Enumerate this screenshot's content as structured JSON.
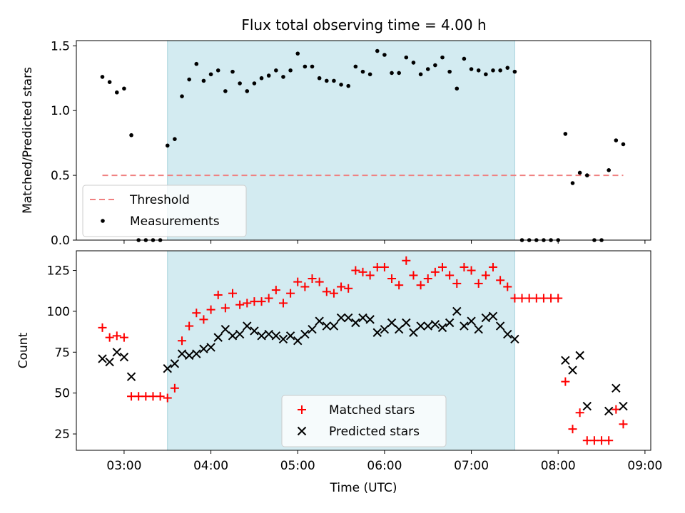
{
  "chart_data": {
    "title": "Flux total observing time = 4.00 h",
    "x_label": "Time (UTC)",
    "x_ticks": [
      "03:00",
      "04:00",
      "05:00",
      "06:00",
      "07:00",
      "08:00",
      "09:00"
    ],
    "x_range": [
      "02:27",
      "09:04"
    ],
    "observing_window": [
      "03:30",
      "07:30"
    ],
    "window_color": "#d3ebf1",
    "panels": [
      {
        "type": "scatter",
        "y_label": "Matched/Predicted stars",
        "y_range": [
          0,
          1.54
        ],
        "y_ticks": [
          "0.0",
          "0.5",
          "1.0",
          "1.5"
        ],
        "legend_position": "lower-left",
        "threshold": {
          "name": "Threshold",
          "value": 0.5,
          "x_range": [
            "02:45",
            "08:45"
          ],
          "color": "#f08080"
        },
        "series": [
          {
            "name": "Measurements",
            "marker": "dot",
            "color": "#000000",
            "points": [
              [
                "02:45",
                1.26
              ],
              [
                "02:50",
                1.22
              ],
              [
                "02:55",
                1.14
              ],
              [
                "03:00",
                1.17
              ],
              [
                "03:05",
                0.81
              ],
              [
                "03:10",
                0.0
              ],
              [
                "03:15",
                0.0
              ],
              [
                "03:20",
                0.0
              ],
              [
                "03:25",
                0.0
              ],
              [
                "03:30",
                0.73
              ],
              [
                "03:35",
                0.78
              ],
              [
                "03:40",
                1.11
              ],
              [
                "03:45",
                1.24
              ],
              [
                "03:50",
                1.36
              ],
              [
                "03:55",
                1.23
              ],
              [
                "04:00",
                1.28
              ],
              [
                "04:05",
                1.31
              ],
              [
                "04:10",
                1.15
              ],
              [
                "04:15",
                1.3
              ],
              [
                "04:20",
                1.21
              ],
              [
                "04:25",
                1.15
              ],
              [
                "04:30",
                1.21
              ],
              [
                "04:35",
                1.25
              ],
              [
                "04:40",
                1.27
              ],
              [
                "04:45",
                1.31
              ],
              [
                "04:50",
                1.26
              ],
              [
                "04:55",
                1.31
              ],
              [
                "05:00",
                1.44
              ],
              [
                "05:05",
                1.34
              ],
              [
                "05:10",
                1.34
              ],
              [
                "05:15",
                1.25
              ],
              [
                "05:20",
                1.23
              ],
              [
                "05:25",
                1.23
              ],
              [
                "05:30",
                1.2
              ],
              [
                "05:35",
                1.19
              ],
              [
                "05:40",
                1.34
              ],
              [
                "05:45",
                1.3
              ],
              [
                "05:50",
                1.28
              ],
              [
                "05:55",
                1.46
              ],
              [
                "06:00",
                1.43
              ],
              [
                "06:05",
                1.29
              ],
              [
                "06:10",
                1.29
              ],
              [
                "06:15",
                1.41
              ],
              [
                "06:20",
                1.37
              ],
              [
                "06:25",
                1.28
              ],
              [
                "06:30",
                1.32
              ],
              [
                "06:35",
                1.35
              ],
              [
                "06:40",
                1.41
              ],
              [
                "06:45",
                1.3
              ],
              [
                "06:50",
                1.17
              ],
              [
                "06:55",
                1.4
              ],
              [
                "07:00",
                1.32
              ],
              [
                "07:05",
                1.31
              ],
              [
                "07:10",
                1.28
              ],
              [
                "07:15",
                1.31
              ],
              [
                "07:20",
                1.31
              ],
              [
                "07:25",
                1.33
              ],
              [
                "07:30",
                1.3
              ],
              [
                "07:35",
                0.0
              ],
              [
                "07:40",
                0.0
              ],
              [
                "07:45",
                0.0
              ],
              [
                "07:50",
                0.0
              ],
              [
                "07:55",
                0.0
              ],
              [
                "08:00",
                0.0
              ],
              [
                "08:05",
                0.82
              ],
              [
                "08:10",
                0.44
              ],
              [
                "08:15",
                0.52
              ],
              [
                "08:20",
                0.5
              ],
              [
                "08:25",
                0.0
              ],
              [
                "08:30",
                0.0
              ],
              [
                "08:35",
                0.54
              ],
              [
                "08:40",
                0.77
              ],
              [
                "08:45",
                0.74
              ]
            ]
          }
        ]
      },
      {
        "type": "scatter",
        "y_label": "Count",
        "y_range": [
          15,
          137
        ],
        "y_ticks": [
          "25",
          "50",
          "75",
          "100",
          "125"
        ],
        "legend_position": "lower-center",
        "series": [
          {
            "name": "Matched stars",
            "marker": "plus",
            "color": "#ff0000",
            "points": [
              [
                "02:45",
                90
              ],
              [
                "02:50",
                84
              ],
              [
                "02:55",
                85
              ],
              [
                "03:00",
                84
              ],
              [
                "03:05",
                48
              ],
              [
                "03:10",
                48
              ],
              [
                "03:15",
                48
              ],
              [
                "03:20",
                48
              ],
              [
                "03:25",
                48
              ],
              [
                "03:30",
                47
              ],
              [
                "03:35",
                53
              ],
              [
                "03:40",
                82
              ],
              [
                "03:45",
                91
              ],
              [
                "03:50",
                99
              ],
              [
                "03:55",
                95
              ],
              [
                "04:00",
                101
              ],
              [
                "04:05",
                110
              ],
              [
                "04:10",
                102
              ],
              [
                "04:15",
                111
              ],
              [
                "04:20",
                104
              ],
              [
                "04:25",
                105
              ],
              [
                "04:30",
                106
              ],
              [
                "04:35",
                106
              ],
              [
                "04:40",
                108
              ],
              [
                "04:45",
                113
              ],
              [
                "04:50",
                105
              ],
              [
                "04:55",
                111
              ],
              [
                "05:00",
                118
              ],
              [
                "05:05",
                115
              ],
              [
                "05:10",
                120
              ],
              [
                "05:15",
                118
              ],
              [
                "05:20",
                112
              ],
              [
                "05:25",
                111
              ],
              [
                "05:30",
                115
              ],
              [
                "05:35",
                114
              ],
              [
                "05:40",
                125
              ],
              [
                "05:45",
                124
              ],
              [
                "05:50",
                122
              ],
              [
                "05:55",
                127
              ],
              [
                "06:00",
                127
              ],
              [
                "06:05",
                120
              ],
              [
                "06:10",
                116
              ],
              [
                "06:15",
                131
              ],
              [
                "06:20",
                122
              ],
              [
                "06:25",
                116
              ],
              [
                "06:30",
                120
              ],
              [
                "06:35",
                124
              ],
              [
                "06:40",
                127
              ],
              [
                "06:45",
                122
              ],
              [
                "06:50",
                117
              ],
              [
                "06:55",
                127
              ],
              [
                "07:00",
                125
              ],
              [
                "07:05",
                117
              ],
              [
                "07:10",
                122
              ],
              [
                "07:15",
                127
              ],
              [
                "07:20",
                119
              ],
              [
                "07:25",
                115
              ],
              [
                "07:30",
                108
              ],
              [
                "07:35",
                108
              ],
              [
                "07:40",
                108
              ],
              [
                "07:45",
                108
              ],
              [
                "07:50",
                108
              ],
              [
                "07:55",
                108
              ],
              [
                "08:00",
                108
              ],
              [
                "08:05",
                57
              ],
              [
                "08:10",
                28
              ],
              [
                "08:15",
                38
              ],
              [
                "08:20",
                21
              ],
              [
                "08:25",
                21
              ],
              [
                "08:30",
                21
              ],
              [
                "08:35",
                21
              ],
              [
                "08:40",
                40
              ],
              [
                "08:45",
                31
              ]
            ]
          },
          {
            "name": "Predicted stars",
            "marker": "x",
            "color": "#000000",
            "points": [
              [
                "02:45",
                71
              ],
              [
                "02:50",
                69
              ],
              [
                "02:55",
                75
              ],
              [
                "03:00",
                72
              ],
              [
                "03:05",
                60
              ],
              [
                "03:30",
                65
              ],
              [
                "03:35",
                68
              ],
              [
                "03:40",
                74
              ],
              [
                "03:45",
                73
              ],
              [
                "03:50",
                74
              ],
              [
                "03:55",
                77
              ],
              [
                "04:00",
                78
              ],
              [
                "04:05",
                84
              ],
              [
                "04:10",
                89
              ],
              [
                "04:15",
                85
              ],
              [
                "04:20",
                86
              ],
              [
                "04:25",
                91
              ],
              [
                "04:30",
                88
              ],
              [
                "04:35",
                85
              ],
              [
                "04:40",
                86
              ],
              [
                "04:45",
                85
              ],
              [
                "04:50",
                83
              ],
              [
                "04:55",
                85
              ],
              [
                "05:00",
                82
              ],
              [
                "05:05",
                86
              ],
              [
                "05:10",
                89
              ],
              [
                "05:15",
                94
              ],
              [
                "05:20",
                91
              ],
              [
                "05:25",
                91
              ],
              [
                "05:30",
                96
              ],
              [
                "05:35",
                96
              ],
              [
                "05:40",
                93
              ],
              [
                "05:45",
                96
              ],
              [
                "05:50",
                95
              ],
              [
                "05:55",
                87
              ],
              [
                "06:00",
                89
              ],
              [
                "06:05",
                93
              ],
              [
                "06:10",
                89
              ],
              [
                "06:15",
                93
              ],
              [
                "06:20",
                87
              ],
              [
                "06:25",
                91
              ],
              [
                "06:30",
                91
              ],
              [
                "06:35",
                92
              ],
              [
                "06:40",
                90
              ],
              [
                "06:45",
                93
              ],
              [
                "06:50",
                100
              ],
              [
                "06:55",
                91
              ],
              [
                "07:00",
                94
              ],
              [
                "07:05",
                89
              ],
              [
                "07:10",
                96
              ],
              [
                "07:15",
                97
              ],
              [
                "07:20",
                91
              ],
              [
                "07:25",
                86
              ],
              [
                "07:30",
                83
              ],
              [
                "08:05",
                70
              ],
              [
                "08:10",
                64
              ],
              [
                "08:15",
                73
              ],
              [
                "08:20",
                42
              ],
              [
                "08:35",
                39
              ],
              [
                "08:40",
                53
              ],
              [
                "08:45",
                42
              ]
            ]
          }
        ]
      }
    ]
  }
}
